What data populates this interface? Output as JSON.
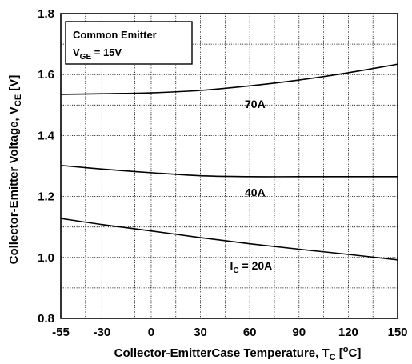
{
  "chart_data": {
    "type": "line",
    "title": "",
    "xlabel": {
      "main": "Collector-EmitterCase Temperature, T",
      "sub": "C",
      "bracket_open": " [",
      "sup": "o",
      "unit": "C]"
    },
    "ylabel": {
      "main": "Collector-Emitter Voltage, V",
      "sub": "CE",
      "unit": " [V]"
    },
    "xlim": [
      -55,
      150
    ],
    "ylim": [
      0.8,
      1.8
    ],
    "xticks": [
      -55,
      -30,
      0,
      30,
      60,
      90,
      120,
      150
    ],
    "yticks": [
      0.8,
      1.0,
      1.2,
      1.4,
      1.6,
      1.8
    ],
    "ytick_labels": [
      "0.8",
      "1.0",
      "1.2",
      "1.4",
      "1.6",
      "1.8"
    ],
    "x_minor_grid": [
      -40,
      -10,
      15,
      45,
      75,
      105,
      135
    ],
    "y_minor_grid": [
      0.9,
      1.1,
      1.3,
      1.5,
      1.7
    ],
    "grid": true,
    "legend": {
      "placement": "top-left",
      "line1": "Common Emitter",
      "line2_main": "V",
      "line2_sub": "GE",
      "line2_rest": " = 15V"
    },
    "series": [
      {
        "name": "70A",
        "label": {
          "main": "70A",
          "at_x": 57,
          "at_y": 1.49
        },
        "x": [
          -55,
          -30,
          0,
          30,
          60,
          90,
          120,
          150
        ],
        "values": [
          1.535,
          1.537,
          1.54,
          1.548,
          1.563,
          1.582,
          1.606,
          1.634
        ]
      },
      {
        "name": "40A",
        "label": {
          "main": "40A",
          "at_x": 57,
          "at_y": 1.2
        },
        "x": [
          -55,
          -30,
          0,
          30,
          60,
          90,
          120,
          150
        ],
        "values": [
          1.302,
          1.29,
          1.278,
          1.268,
          1.265,
          1.265,
          1.265,
          1.265
        ]
      },
      {
        "name": "I_C = 20A",
        "label": {
          "main": "I",
          "sub": "C",
          "rest": " = 20A",
          "at_x": 48,
          "at_y": 0.96
        },
        "x": [
          -55,
          -30,
          0,
          30,
          60,
          90,
          120,
          150
        ],
        "values": [
          1.128,
          1.108,
          1.087,
          1.065,
          1.045,
          1.027,
          1.01,
          0.992
        ]
      }
    ]
  }
}
